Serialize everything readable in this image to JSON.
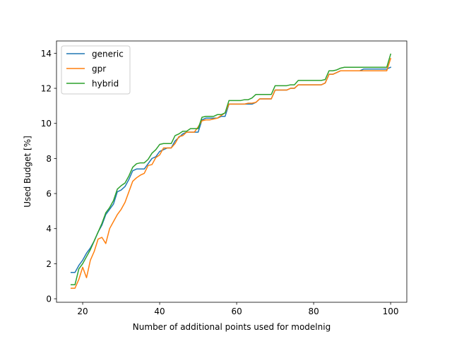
{
  "chart_data": {
    "type": "line",
    "title": "",
    "xlabel": "Number of additional points used for modelnig",
    "ylabel": "Used Budget [%]",
    "xlim": [
      13.2,
      104.2
    ],
    "ylim": [
      -0.2,
      14.7
    ],
    "xticks": [
      20,
      40,
      60,
      80,
      100
    ],
    "yticks": [
      0,
      2,
      4,
      6,
      8,
      10,
      12,
      14
    ],
    "grid": false,
    "legend_position": "upper-left",
    "x": [
      17,
      18,
      19,
      20,
      21,
      22,
      23,
      24,
      25,
      26,
      27,
      28,
      29,
      30,
      31,
      32,
      33,
      34,
      35,
      36,
      37,
      38,
      39,
      40,
      41,
      42,
      43,
      44,
      45,
      46,
      47,
      48,
      49,
      50,
      51,
      52,
      53,
      54,
      55,
      56,
      57,
      58,
      59,
      60,
      61,
      62,
      63,
      64,
      65,
      66,
      67,
      68,
      69,
      70,
      71,
      72,
      73,
      74,
      75,
      76,
      77,
      78,
      79,
      80,
      81,
      82,
      83,
      84,
      85,
      86,
      87,
      88,
      89,
      90,
      91,
      92,
      93,
      94,
      95,
      96,
      97,
      98,
      99,
      100
    ],
    "series": [
      {
        "name": "generic",
        "color": "#1f77b4",
        "values": [
          1.5,
          1.5,
          1.9,
          2.2,
          2.6,
          2.9,
          3.3,
          3.8,
          4.2,
          4.8,
          5.1,
          5.4,
          6.1,
          6.2,
          6.4,
          6.8,
          7.3,
          7.4,
          7.4,
          7.4,
          7.7,
          8.0,
          8.1,
          8.4,
          8.5,
          8.6,
          8.6,
          9.0,
          9.2,
          9.4,
          9.5,
          9.5,
          9.5,
          9.5,
          10.2,
          10.3,
          10.3,
          10.3,
          10.3,
          10.4,
          10.4,
          11.1,
          11.1,
          11.1,
          11.1,
          11.1,
          11.1,
          11.1,
          11.2,
          11.4,
          11.4,
          11.4,
          11.4,
          11.9,
          11.9,
          11.9,
          11.9,
          12.0,
          12.0,
          12.2,
          12.2,
          12.2,
          12.2,
          12.2,
          12.2,
          12.2,
          12.3,
          12.8,
          12.8,
          12.9,
          13.0,
          13.0,
          13.0,
          13.0,
          13.0,
          13.0,
          13.1,
          13.1,
          13.1,
          13.1,
          13.1,
          13.1,
          13.1,
          13.2
        ]
      },
      {
        "name": "gpr",
        "color": "#ff7f0e",
        "values": [
          0.6,
          0.6,
          1.1,
          1.8,
          1.2,
          2.2,
          2.7,
          3.4,
          3.5,
          3.15,
          4.0,
          4.4,
          4.8,
          5.1,
          5.5,
          6.1,
          6.7,
          6.9,
          7.05,
          7.15,
          7.6,
          7.65,
          8.05,
          8.2,
          8.6,
          8.6,
          8.6,
          8.85,
          9.25,
          9.3,
          9.5,
          9.5,
          9.5,
          9.8,
          10.15,
          10.2,
          10.2,
          10.25,
          10.3,
          10.45,
          10.6,
          11.1,
          11.1,
          11.1,
          11.1,
          11.1,
          11.15,
          11.15,
          11.2,
          11.4,
          11.4,
          11.4,
          11.4,
          11.9,
          11.9,
          11.9,
          11.9,
          12.0,
          12.0,
          12.2,
          12.2,
          12.2,
          12.2,
          12.2,
          12.2,
          12.2,
          12.3,
          12.8,
          12.8,
          12.9,
          13.0,
          13.0,
          13.0,
          13.0,
          13.0,
          13.0,
          13.0,
          13.0,
          13.0,
          13.0,
          13.0,
          13.0,
          13.0,
          13.7
        ]
      },
      {
        "name": "hybrid",
        "color": "#2ca02c",
        "values": [
          0.8,
          0.8,
          1.7,
          2.0,
          2.4,
          2.8,
          3.3,
          3.8,
          4.3,
          4.9,
          5.2,
          5.6,
          6.25,
          6.45,
          6.6,
          7.0,
          7.5,
          7.7,
          7.75,
          7.75,
          7.95,
          8.3,
          8.5,
          8.8,
          8.85,
          8.85,
          8.85,
          9.3,
          9.4,
          9.55,
          9.55,
          9.7,
          9.7,
          9.7,
          10.35,
          10.4,
          10.4,
          10.4,
          10.5,
          10.5,
          10.6,
          11.3,
          11.3,
          11.3,
          11.3,
          11.35,
          11.35,
          11.45,
          11.65,
          11.65,
          11.65,
          11.65,
          11.65,
          12.15,
          12.15,
          12.15,
          12.15,
          12.2,
          12.2,
          12.45,
          12.45,
          12.45,
          12.45,
          12.45,
          12.45,
          12.45,
          12.5,
          13.0,
          13.0,
          13.05,
          13.15,
          13.2,
          13.2,
          13.2,
          13.2,
          13.2,
          13.2,
          13.2,
          13.2,
          13.2,
          13.2,
          13.2,
          13.2,
          13.95
        ]
      }
    ]
  }
}
